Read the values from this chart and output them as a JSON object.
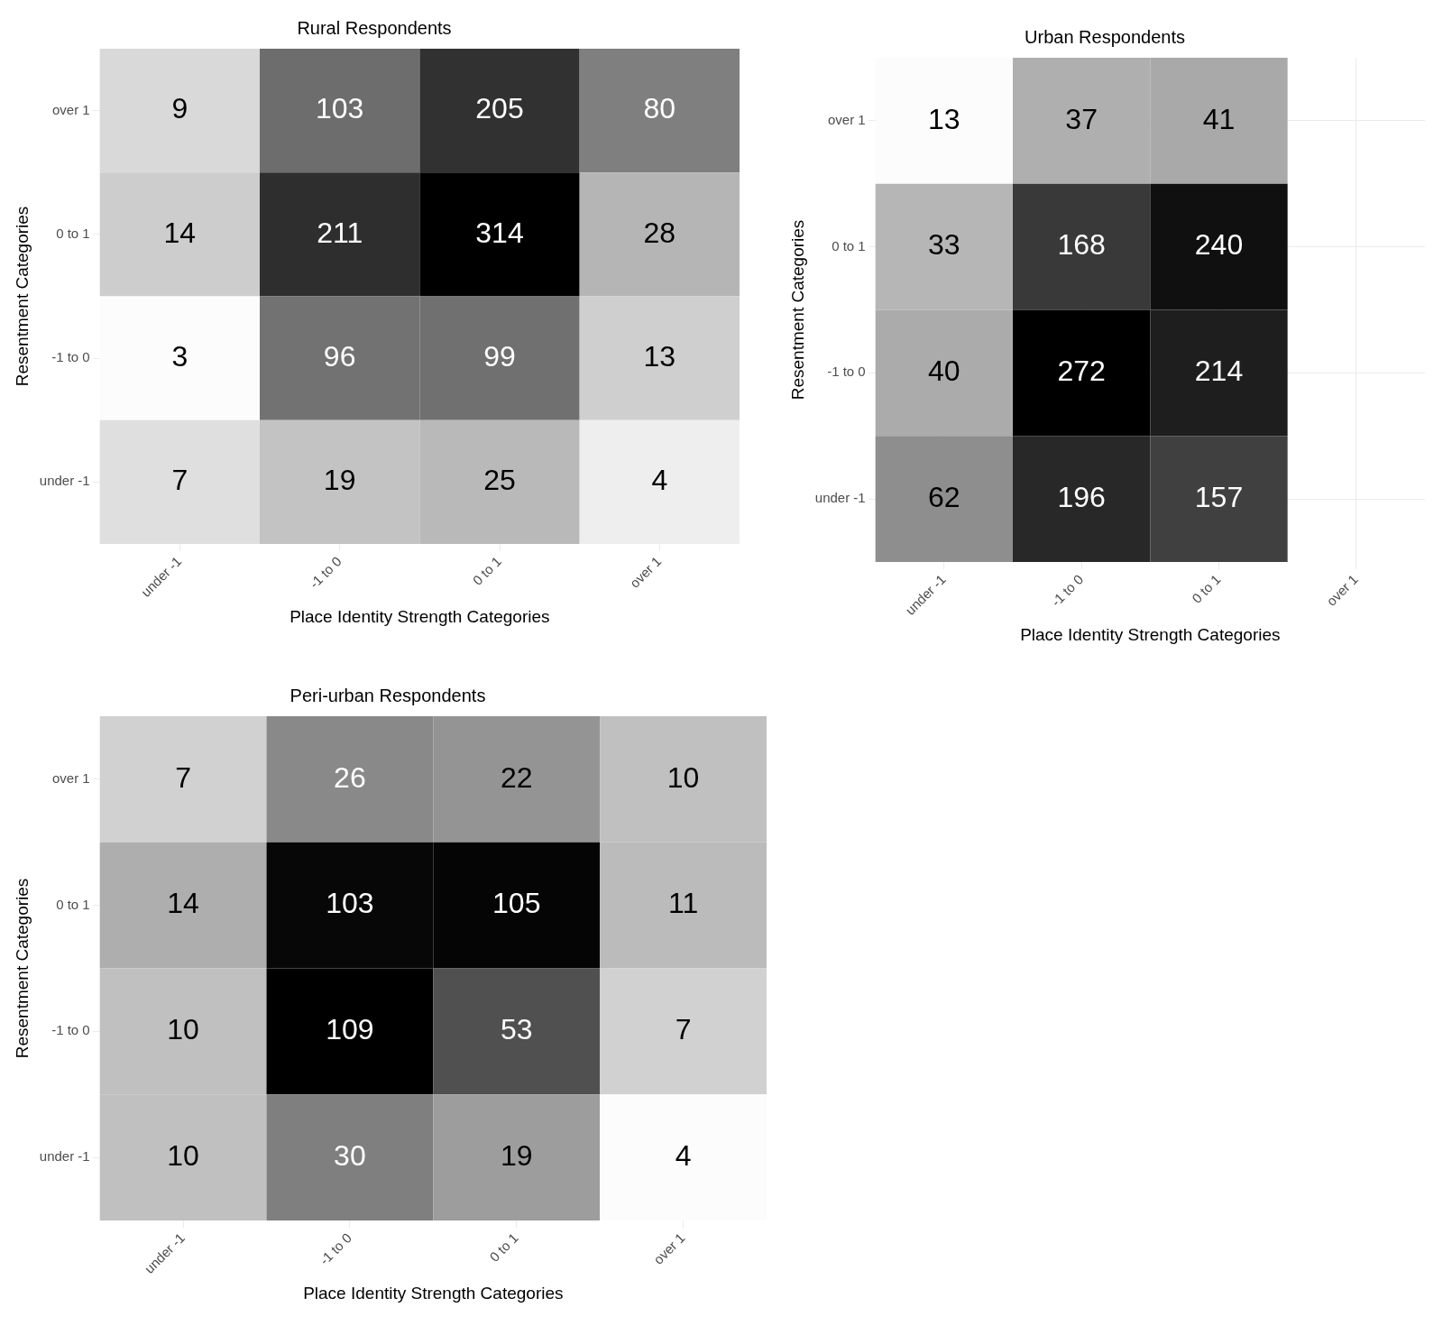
{
  "chart_data": [
    {
      "type": "heatmap",
      "title": "Rural Respondents",
      "xlabel": "Place Identity Strength Categories",
      "ylabel": "Resentment Categories",
      "categories": [
        "under -1",
        "-1 to 0",
        "0 to 1",
        "over 1"
      ],
      "y_categories": [
        "over 1",
        "0 to 1",
        "-1 to 0",
        "under -1"
      ],
      "cells": [
        [
          9,
          103,
          205,
          80
        ],
        [
          14,
          211,
          314,
          28
        ],
        [
          3,
          96,
          99,
          13
        ],
        [
          7,
          19,
          25,
          4
        ]
      ],
      "data_labels": true
    },
    {
      "type": "heatmap",
      "title": "Urban Respondents",
      "xlabel": "Place Identity Strength Categories",
      "ylabel": "Resentment Categories",
      "categories": [
        "under -1",
        "-1 to 0",
        "0 to 1",
        "over 1"
      ],
      "y_categories": [
        "over 1",
        "0 to 1",
        "-1 to 0",
        "under -1"
      ],
      "cells": [
        [
          13,
          37,
          41,
          null
        ],
        [
          33,
          168,
          240,
          null
        ],
        [
          40,
          272,
          214,
          null
        ],
        [
          62,
          196,
          157,
          null
        ]
      ],
      "data_labels": true,
      "grid": true
    },
    {
      "type": "heatmap",
      "title": "Peri-urban Respondents",
      "xlabel": "Place Identity Strength Categories",
      "ylabel": "Resentment Categories",
      "categories": [
        "under -1",
        "-1 to 0",
        "0 to 1",
        "over 1"
      ],
      "y_categories": [
        "over 1",
        "0 to 1",
        "-1 to 0",
        "under -1"
      ],
      "cells": [
        [
          7,
          26,
          22,
          10
        ],
        [
          14,
          103,
          105,
          11
        ],
        [
          10,
          109,
          53,
          7
        ],
        [
          10,
          30,
          19,
          4
        ]
      ],
      "data_labels": true
    }
  ]
}
